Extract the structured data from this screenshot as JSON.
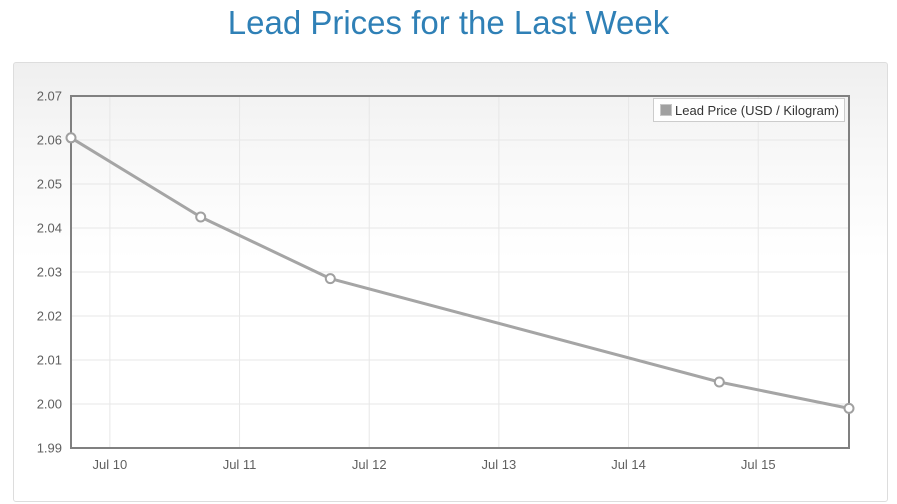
{
  "title": "Lead Prices for the Last Week",
  "colors": {
    "title_blue": "#2f80b6",
    "series_line": "#a5a5a5",
    "marker_fill": "#ffffff",
    "marker_stroke": "#a0a0a0",
    "plot_border": "#808080",
    "gridline": "#e7e7e7",
    "axis_label": "#606060",
    "legend_text": "#333333",
    "legend_border": "#cccccc",
    "legend_swatch": "#a0a0a0",
    "panel_border": "#dddddd",
    "panel_gradient_top": "#efefef"
  },
  "legend": {
    "position": "top-right"
  },
  "chart_data": {
    "type": "line",
    "title": "Lead Prices for the Last Week",
    "xlabel": "",
    "ylabel": "",
    "grid": true,
    "legend_position": "top-right",
    "xlim_days": [
      9.7,
      15.7
    ],
    "ylim": [
      1.99,
      2.07
    ],
    "y_tick_step": 0.01,
    "y_tick_labels": [
      "1.99",
      "2.00",
      "2.01",
      "2.02",
      "2.03",
      "2.04",
      "2.05",
      "2.06",
      "2.07"
    ],
    "x_ticks": [
      {
        "day": 10,
        "label": "Jul 10"
      },
      {
        "day": 11,
        "label": "Jul 11"
      },
      {
        "day": 12,
        "label": "Jul 12"
      },
      {
        "day": 13,
        "label": "Jul 13"
      },
      {
        "day": 14,
        "label": "Jul 14"
      },
      {
        "day": 15,
        "label": "Jul 15"
      }
    ],
    "series": [
      {
        "name": "Lead Price (USD / Kilogram)",
        "marker": "circle",
        "points": [
          {
            "day": 9.7,
            "date": "Jul 9",
            "value": 2.0605
          },
          {
            "day": 10.7,
            "date": "Jul 10",
            "value": 2.0425
          },
          {
            "day": 11.7,
            "date": "Jul 11",
            "value": 2.0285
          },
          {
            "day": 14.7,
            "date": "Jul 14",
            "value": 2.005
          },
          {
            "day": 15.7,
            "date": "Jul 15",
            "value": 1.999
          }
        ]
      }
    ]
  }
}
